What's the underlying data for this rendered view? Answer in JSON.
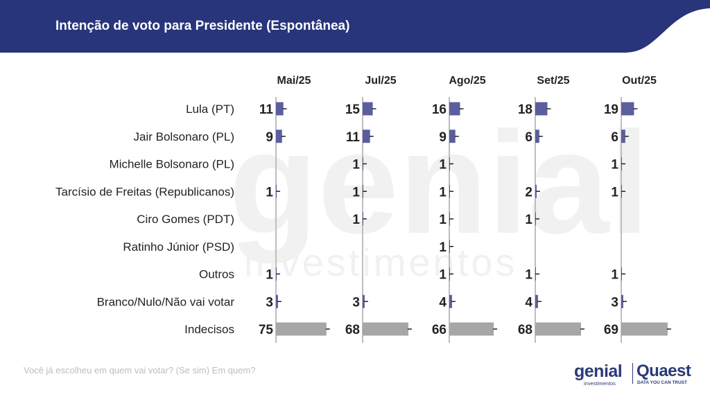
{
  "header": {
    "title": "Intenção de voto para Presidente (Espontânea)"
  },
  "footnote": "Você já escolheu em quem vai votar? (Se sim) Em quem?",
  "logos": {
    "genial_word": "genial",
    "genial_sub": "investimentos",
    "quaest_word": "Quaest",
    "quaest_sub": "DATA YOU CAN TRUST"
  },
  "watermark": {
    "line1": "genial",
    "line2": "investimentos"
  },
  "colors": {
    "header_bg": "#28357a",
    "candidate_bar": "#5b5e9e",
    "undecided_bar": "#a6a6a6",
    "text": "#222222"
  },
  "chart_data": {
    "type": "bar",
    "orientation": "horizontal",
    "title": "Intenção de voto para Presidente (Espontânea)",
    "categories": [
      "Lula (PT)",
      "Jair Bolsonaro (PL)",
      "Michelle Bolsonaro (PL)",
      "Tarcísio de Freitas (Republicanos)",
      "Ciro Gomes (PDT)",
      "Ratinho Júnior (PSD)",
      "Outros",
      "Branco/Nulo/Não vai votar",
      "Indecisos"
    ],
    "series": [
      {
        "name": "Mai/25",
        "values": [
          11,
          9,
          null,
          1,
          null,
          null,
          1,
          3,
          75
        ]
      },
      {
        "name": "Jul/25",
        "values": [
          15,
          11,
          1,
          1,
          1,
          null,
          null,
          3,
          68
        ]
      },
      {
        "name": "Ago/25",
        "values": [
          16,
          9,
          1,
          1,
          1,
          1,
          1,
          4,
          66
        ]
      },
      {
        "name": "Set/25",
        "values": [
          18,
          6,
          null,
          2,
          1,
          null,
          1,
          4,
          68
        ]
      },
      {
        "name": "Out/25",
        "values": [
          19,
          6,
          1,
          1,
          null,
          null,
          1,
          3,
          69
        ]
      }
    ],
    "xlim": [
      0,
      100
    ],
    "grid": false,
    "legend": "none"
  }
}
